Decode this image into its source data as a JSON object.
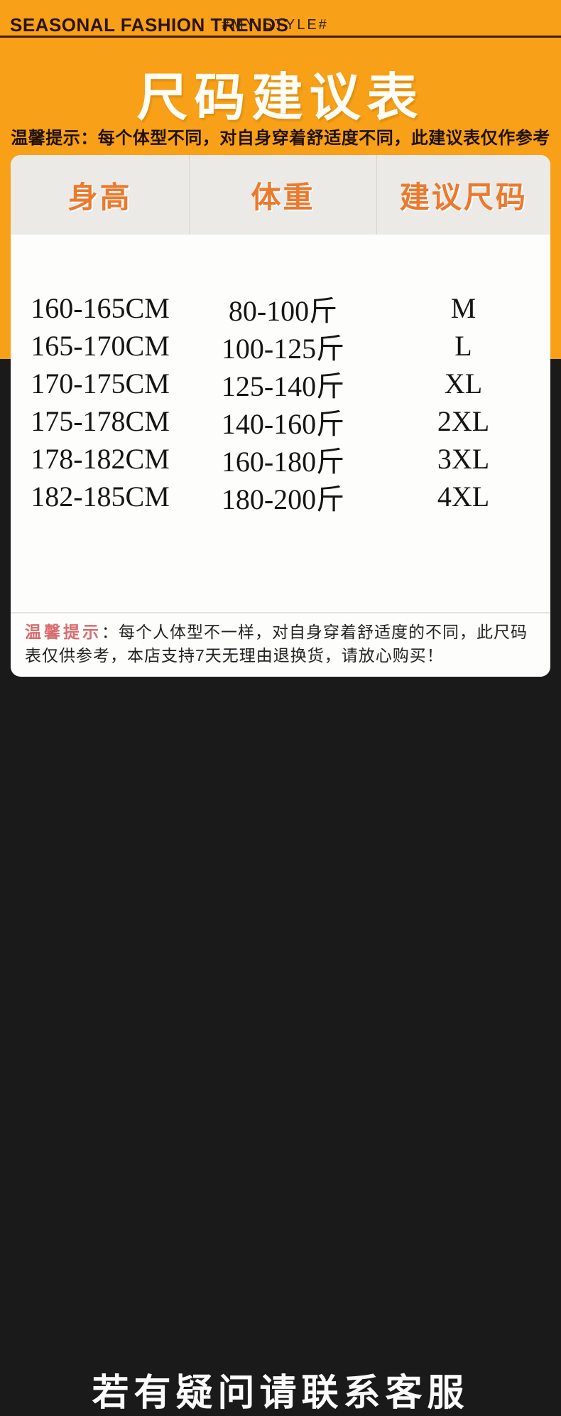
{
  "topbar": {
    "brand": "SEASONAL FASHION TRENDS",
    "tagline": "#MY STYLE#"
  },
  "hero": {
    "title": "尺码建议表",
    "notice": "温馨提示：每个体型不同，对自身穿着舒适度不同，此建议表仅作参考"
  },
  "table": {
    "headers": [
      "身高",
      "体重",
      "建议尺码"
    ],
    "rows": [
      [
        "160-165CM",
        "80-100斤",
        "M"
      ],
      [
        "165-170CM",
        "100-125斤",
        "L"
      ],
      [
        "170-175CM",
        "125-140斤",
        "XL"
      ],
      [
        "175-178CM",
        "140-160斤",
        "2XL"
      ],
      [
        "178-182CM",
        "160-180斤",
        "3XL"
      ],
      [
        "182-185CM",
        "180-200斤",
        "4XL"
      ]
    ]
  },
  "footnote": {
    "label": "温馨提示",
    "body": "：每个人体型不一样，对自身穿着舒适度的不同，此尺码表仅供参考，本店支持7天无理由退换货，请放心购买！"
  },
  "footer": {
    "text": "若有疑问请联系客服"
  },
  "colors": {
    "background_orange": "#f7a018",
    "background_black": "#1b1a1a",
    "header_text_orange": "#e97a2e",
    "header_band_gray": "#eceae7",
    "notice_pink": "#d96b6f",
    "title_white": "#fffdf6",
    "topbar_text_dark": "#2a130a"
  }
}
